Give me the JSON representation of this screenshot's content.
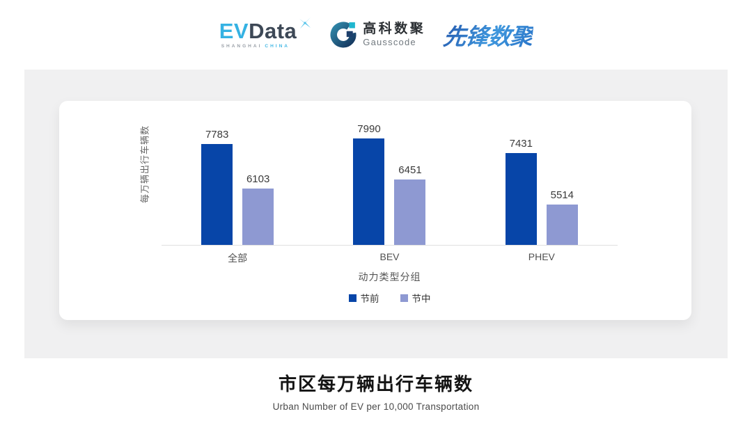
{
  "header": {
    "evdata": {
      "ev": "EV",
      "data": "Data",
      "subtitle_left": "SHANGHAI",
      "subtitle_right": "CHINA"
    },
    "gausscode": {
      "cn": "高科数聚",
      "en": "Gausscode"
    },
    "xianfeng": {
      "text": "先锋数聚"
    }
  },
  "chart_data": {
    "type": "bar",
    "categories": [
      "全部",
      "BEV",
      "PHEV"
    ],
    "series": [
      {
        "name": "节前",
        "color": "#0745a8",
        "values": [
          7783,
          7990,
          7431
        ]
      },
      {
        "name": "节中",
        "color": "#8e99d2",
        "values": [
          6103,
          6451,
          5514
        ]
      }
    ],
    "ylabel": "每万辆出行车辆数",
    "xlabel": "动力类型分组",
    "ylim": [
      4000,
      8800
    ],
    "grid": false,
    "legend_position": "bottom",
    "data_labels": true
  },
  "footer": {
    "title": "市区每万辆出行车辆数",
    "subtitle": "Urban Number of EV per 10,000 Transportation"
  },
  "colors": {
    "panel_bg": "#f0f0f1",
    "card_bg": "#ffffff",
    "axis_line": "#e0e0e0",
    "series_dark": "#0745a8",
    "series_light": "#8e99d2"
  }
}
